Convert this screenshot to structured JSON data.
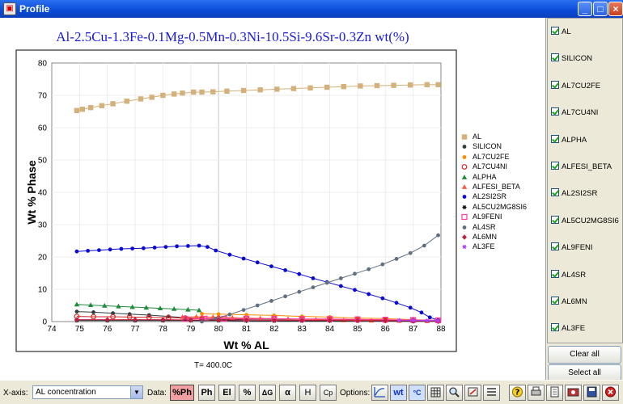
{
  "window": {
    "title": "Profile",
    "controls": [
      "_",
      "□",
      "×"
    ]
  },
  "chart_data": {
    "type": "line",
    "title": "Al-2.5Cu-1.3Fe-0.1Mg-0.5Mn-0.3Ni-10.5Si-9.6Sr-0.3Zn wt(%)",
    "xlabel": "Wt % AL",
    "ylabel": "Wt % Phase",
    "annotation": "T= 400.0C",
    "xlim": [
      74,
      88
    ],
    "ylim": [
      0,
      80
    ],
    "xticks": [
      "74",
      "75",
      "76",
      "77",
      "78",
      "79",
      "80",
      "81",
      "82",
      "83",
      "84",
      "85",
      "86",
      "87",
      "88"
    ],
    "yticks": [
      "0",
      "10",
      "20",
      "30",
      "40",
      "50",
      "60",
      "70",
      "80"
    ],
    "grid": "on",
    "legend_position": "right",
    "series": [
      {
        "name": "AL",
        "color": "#d4b07a",
        "marker": "square",
        "points": [
          [
            74.9,
            65.3
          ],
          [
            75.1,
            65.7
          ],
          [
            75.4,
            66.2
          ],
          [
            75.8,
            66.8
          ],
          [
            76.2,
            67.4
          ],
          [
            76.7,
            68.2
          ],
          [
            77.2,
            68.9
          ],
          [
            77.6,
            69.4
          ],
          [
            78.0,
            70.0
          ],
          [
            78.4,
            70.4
          ],
          [
            78.7,
            70.7
          ],
          [
            79.1,
            71.0
          ],
          [
            79.4,
            71.0
          ],
          [
            79.8,
            71.1
          ],
          [
            80.3,
            71.3
          ],
          [
            80.9,
            71.5
          ],
          [
            81.5,
            71.7
          ],
          [
            82.1,
            71.9
          ],
          [
            82.7,
            72.1
          ],
          [
            83.3,
            72.3
          ],
          [
            83.9,
            72.5
          ],
          [
            84.5,
            72.7
          ],
          [
            85.1,
            72.9
          ],
          [
            85.7,
            73.0
          ],
          [
            86.3,
            73.1
          ],
          [
            86.9,
            73.2
          ],
          [
            87.5,
            73.3
          ],
          [
            87.9,
            73.3
          ]
        ]
      },
      {
        "name": "SILICON",
        "color": "#2d3e3e",
        "marker": "circle",
        "points": [
          [
            74.9,
            3.1
          ],
          [
            75.5,
            2.9
          ],
          [
            76.2,
            2.6
          ],
          [
            76.8,
            2.3
          ],
          [
            77.5,
            2.0
          ],
          [
            78.2,
            1.6
          ],
          [
            78.8,
            1.2
          ],
          [
            79.4,
            0.9
          ],
          [
            80.0,
            0.7
          ],
          [
            81.0,
            0.6
          ],
          [
            82.0,
            0.5
          ],
          [
            83.0,
            0.4
          ],
          [
            84.0,
            0.3
          ],
          [
            85.0,
            0.3
          ],
          [
            86.0,
            0.2
          ],
          [
            87.0,
            0.2
          ],
          [
            87.9,
            0.2
          ]
        ]
      },
      {
        "name": "AL7CU2FE",
        "color": "#ff8a00",
        "marker": "circle",
        "points": [
          [
            79.4,
            2.4
          ],
          [
            80.0,
            2.3
          ],
          [
            81.0,
            2.1
          ],
          [
            82.0,
            1.9
          ],
          [
            83.0,
            1.6
          ],
          [
            84.0,
            1.4
          ],
          [
            85.0,
            1.1
          ],
          [
            86.0,
            0.9
          ],
          [
            87.0,
            0.6
          ],
          [
            87.9,
            0.4
          ]
        ]
      },
      {
        "name": "AL7CU4NI",
        "color": "#dd2222",
        "marker": "circle-open",
        "points": [
          [
            74.9,
            1.6
          ],
          [
            75.5,
            1.5
          ],
          [
            76.2,
            1.5
          ],
          [
            76.8,
            1.4
          ],
          [
            77.5,
            1.3
          ],
          [
            78.2,
            1.2
          ],
          [
            78.8,
            1.1
          ],
          [
            79.4,
            1.0
          ],
          [
            80.0,
            1.0
          ],
          [
            81.0,
            0.9
          ],
          [
            82.0,
            0.8
          ],
          [
            83.0,
            0.7
          ],
          [
            84.0,
            0.6
          ],
          [
            85.0,
            0.5
          ],
          [
            86.0,
            0.4
          ],
          [
            87.0,
            0.3
          ],
          [
            87.9,
            0.2
          ]
        ]
      },
      {
        "name": "ALPHA",
        "color": "#1f8a3a",
        "marker": "triangle",
        "points": [
          [
            74.9,
            5.3
          ],
          [
            75.4,
            5.1
          ],
          [
            75.9,
            4.9
          ],
          [
            76.4,
            4.7
          ],
          [
            76.9,
            4.5
          ],
          [
            77.4,
            4.3
          ],
          [
            77.9,
            4.1
          ],
          [
            78.4,
            3.9
          ],
          [
            78.9,
            3.7
          ],
          [
            79.3,
            3.5
          ]
        ]
      },
      {
        "name": "ALFESI_BETA",
        "color": "#ff5a3c",
        "marker": "triangle",
        "points": [
          [
            78.7,
            1.4
          ],
          [
            79.2,
            1.5
          ],
          [
            79.8,
            1.4
          ],
          [
            80.5,
            1.2
          ],
          [
            81.5,
            1.0
          ],
          [
            82.5,
            0.8
          ],
          [
            83.5,
            0.6
          ],
          [
            84.5,
            0.4
          ],
          [
            85.5,
            0.3
          ],
          [
            86.5,
            0.2
          ],
          [
            87.5,
            0.1
          ]
        ]
      },
      {
        "name": "AL2SI2SR",
        "color": "#0a0ad0",
        "marker": "circle",
        "points": [
          [
            74.9,
            21.7
          ],
          [
            75.3,
            21.9
          ],
          [
            75.7,
            22.1
          ],
          [
            76.1,
            22.3
          ],
          [
            76.5,
            22.5
          ],
          [
            76.9,
            22.6
          ],
          [
            77.3,
            22.7
          ],
          [
            77.7,
            22.9
          ],
          [
            78.1,
            23.1
          ],
          [
            78.5,
            23.3
          ],
          [
            78.9,
            23.4
          ],
          [
            79.3,
            23.5
          ],
          [
            79.6,
            23.1
          ],
          [
            79.9,
            22.0
          ],
          [
            80.4,
            20.7
          ],
          [
            80.9,
            19.5
          ],
          [
            81.4,
            18.3
          ],
          [
            81.9,
            17.1
          ],
          [
            82.4,
            15.9
          ],
          [
            82.9,
            14.7
          ],
          [
            83.4,
            13.4
          ],
          [
            83.9,
            12.2
          ],
          [
            84.4,
            11.0
          ],
          [
            84.9,
            9.8
          ],
          [
            85.4,
            8.5
          ],
          [
            85.9,
            7.2
          ],
          [
            86.4,
            5.8
          ],
          [
            86.9,
            4.3
          ],
          [
            87.3,
            2.8
          ],
          [
            87.6,
            1.3
          ],
          [
            87.9,
            0.4
          ]
        ]
      },
      {
        "name": "AL5CU2MG8SI6",
        "color": "#111111",
        "marker": "asterisk",
        "points": [
          [
            74.9,
            0.3
          ],
          [
            76.0,
            0.3
          ],
          [
            77.0,
            0.3
          ],
          [
            78.0,
            0.3
          ],
          [
            79.0,
            0.3
          ],
          [
            80.0,
            0.3
          ],
          [
            81.0,
            0.2
          ],
          [
            82.0,
            0.2
          ],
          [
            83.0,
            0.2
          ],
          [
            84.0,
            0.2
          ],
          [
            85.0,
            0.2
          ],
          [
            86.0,
            0.2
          ],
          [
            87.0,
            0.1
          ],
          [
            87.9,
            0.1
          ]
        ]
      },
      {
        "name": "AL9FENI",
        "color": "#ff3aa0",
        "marker": "square-open",
        "points": [
          [
            78.8,
            0.8
          ],
          [
            79.5,
            0.9
          ],
          [
            80.2,
            0.9
          ],
          [
            81.0,
            0.9
          ],
          [
            82.0,
            0.9
          ],
          [
            83.0,
            0.8
          ],
          [
            84.0,
            0.8
          ],
          [
            85.0,
            0.7
          ],
          [
            86.0,
            0.6
          ],
          [
            87.0,
            0.5
          ],
          [
            87.9,
            0.4
          ]
        ]
      },
      {
        "name": "AL4SR",
        "color": "#607080",
        "marker": "circle",
        "points": [
          [
            79.4,
            0.0
          ],
          [
            79.9,
            0.9
          ],
          [
            80.4,
            2.2
          ],
          [
            80.9,
            3.6
          ],
          [
            81.4,
            5.0
          ],
          [
            81.9,
            6.4
          ],
          [
            82.4,
            7.8
          ],
          [
            82.9,
            9.2
          ],
          [
            83.4,
            10.6
          ],
          [
            83.9,
            12.0
          ],
          [
            84.4,
            13.4
          ],
          [
            84.9,
            14.8
          ],
          [
            85.4,
            16.2
          ],
          [
            85.9,
            17.7
          ],
          [
            86.4,
            19.4
          ],
          [
            86.9,
            21.2
          ],
          [
            87.4,
            23.5
          ],
          [
            87.9,
            26.7
          ]
        ]
      },
      {
        "name": "AL6MN",
        "color": "#c02040",
        "marker": "diamond",
        "points": [
          [
            74.9,
            0.6
          ],
          [
            76.0,
            0.6
          ],
          [
            77.0,
            0.6
          ],
          [
            78.0,
            0.6
          ],
          [
            79.0,
            0.5
          ],
          [
            80.0,
            0.5
          ],
          [
            81.0,
            0.5
          ],
          [
            82.0,
            0.4
          ],
          [
            83.0,
            0.4
          ],
          [
            84.0,
            0.4
          ],
          [
            85.0,
            0.3
          ],
          [
            86.0,
            0.3
          ],
          [
            87.0,
            0.2
          ],
          [
            87.9,
            0.2
          ]
        ]
      },
      {
        "name": "AL3FE",
        "color": "#b040ff",
        "marker": "asterisk",
        "points": [
          [
            86.5,
            0.4
          ],
          [
            87.0,
            0.4
          ],
          [
            87.5,
            0.3
          ],
          [
            87.9,
            0.3
          ]
        ]
      }
    ]
  },
  "side_panel": {
    "items": [
      "AL",
      "SILICON",
      "AL7CU2FE",
      "AL7CU4NI",
      "ALPHA",
      "ALFESI_BETA",
      "AL2SI2SR",
      "AL5CU2MG8SI6",
      "AL9FENI",
      "AL4SR",
      "AL6MN",
      "AL3FE"
    ],
    "clear_all": "Clear all",
    "select_all": "Select all"
  },
  "toolbar": {
    "xaxis_label": "X-axis:",
    "xaxis_value": "AL concentration",
    "data_label": "Data:",
    "options_label": "Options:",
    "data_buttons": [
      "%Ph",
      "Ph",
      "El",
      "%",
      "ΔG",
      "α",
      "H",
      "Cp"
    ],
    "option_buttons": [
      "log",
      "wt",
      "°C",
      "grid",
      "zoom",
      "fit",
      "list"
    ],
    "end_buttons": [
      "help",
      "print",
      "copy",
      "export",
      "save",
      "close"
    ]
  }
}
